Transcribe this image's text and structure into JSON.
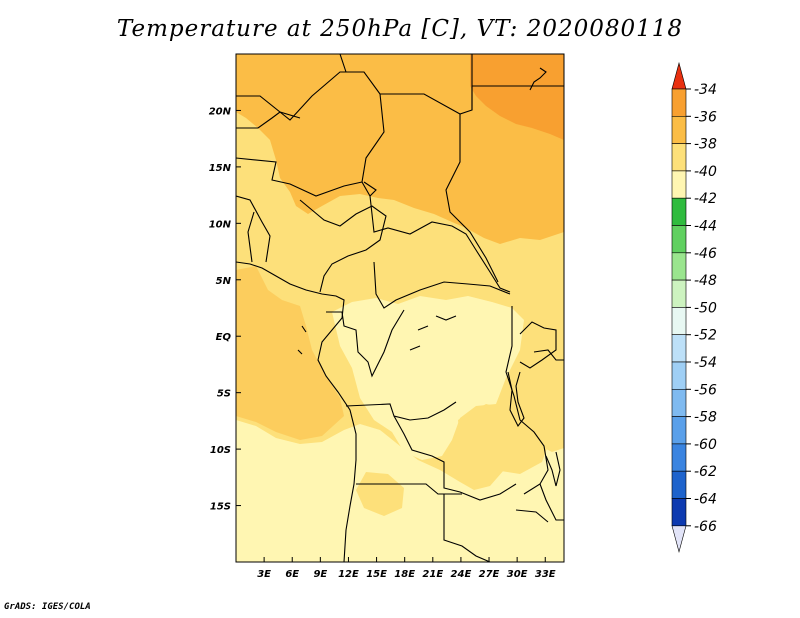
{
  "title": "Temperature at 250hPa [C], VT: 2020080118",
  "credit": "GrADS: IGES/COLA",
  "map": {
    "lon_range": [
      0,
      35
    ],
    "lat_range": [
      -20,
      25
    ],
    "x_ticks": [
      "3E",
      "6E",
      "9E",
      "12E",
      "15E",
      "18E",
      "21E",
      "24E",
      "27E",
      "30E",
      "33E"
    ],
    "y_ticks": [
      "20N",
      "15N",
      "10N",
      "5N",
      "EQ",
      "5S",
      "10S",
      "15S"
    ],
    "colors": {
      "c_m38_m36": "#f8a030",
      "c_m40_m38": "#fbbd46",
      "c_m42_m40": "#fde07a",
      "c_m44_m42": "#fff6b2",
      "border": "#000000"
    }
  },
  "colorbar": {
    "labels": [
      "-34",
      "-36",
      "-38",
      "-40",
      "-42",
      "-44",
      "-46",
      "-48",
      "-50",
      "-52",
      "-54",
      "-56",
      "-58",
      "-60",
      "-62",
      "-64",
      "-66"
    ],
    "colors": [
      "#f04a18",
      "#f8a030",
      "#fbbd46",
      "#fde07a",
      "#fff6b2",
      "#2fbb3e",
      "#60d060",
      "#9ae58e",
      "#cdf3c0",
      "#e8f8f3",
      "#bde0f8",
      "#9fcff5",
      "#7fbaf0",
      "#5aa0ea",
      "#3a84e0",
      "#1e63cc",
      "#0d3ab0",
      "#0a1f80"
    ],
    "top_tip_color": "#e83010",
    "bottom_tip_color": "#e2e4f8"
  }
}
